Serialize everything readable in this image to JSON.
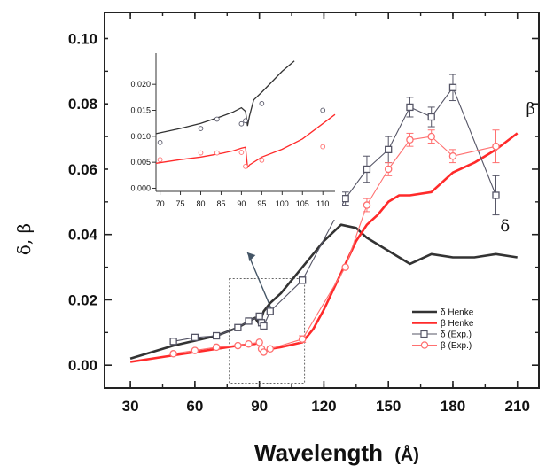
{
  "chart_data": [
    {
      "type": "line",
      "xlabel": "Wavelength",
      "xunit": "(Å)",
      "ylabel": "δ, β",
      "xlim": [
        18,
        220
      ],
      "ylim": [
        -0.007,
        0.108
      ],
      "xticks": [
        30,
        60,
        90,
        120,
        150,
        180,
        210
      ],
      "yticks": [
        0.0,
        0.02,
        0.04,
        0.06,
        0.08,
        0.1
      ],
      "ytick_labels": [
        "0.00",
        "0.02",
        "0.04",
        "0.06",
        "0.08",
        "0.10"
      ],
      "legend_position": "bottom-right",
      "annotations": [
        {
          "text": "β",
          "x": 214,
          "y": 0.077
        },
        {
          "text": "δ",
          "x": 202,
          "y": 0.041
        }
      ],
      "series": [
        {
          "name": "δ Henke",
          "color": "#333333",
          "style": "line",
          "x": [
            30,
            50,
            70,
            80,
            88,
            90,
            92,
            95,
            100,
            110,
            120,
            128,
            135,
            140,
            150,
            160,
            170,
            180,
            190,
            200,
            210
          ],
          "y": [
            0.002,
            0.006,
            0.009,
            0.0115,
            0.0145,
            0.0125,
            0.0165,
            0.019,
            0.022,
            0.03,
            0.038,
            0.043,
            0.042,
            0.039,
            0.035,
            0.031,
            0.034,
            0.033,
            0.033,
            0.034,
            0.033
          ]
        },
        {
          "name": "β Henke",
          "color": "#ff2a2a",
          "style": "line",
          "x": [
            30,
            50,
            70,
            80,
            88,
            90,
            92,
            95,
            100,
            110,
            115,
            120,
            125,
            130,
            135,
            140,
            145,
            150,
            155,
            160,
            170,
            180,
            190,
            200,
            210
          ],
          "y": [
            0.001,
            0.003,
            0.005,
            0.006,
            0.0065,
            0.007,
            0.004,
            0.005,
            0.0055,
            0.007,
            0.011,
            0.017,
            0.024,
            0.031,
            0.038,
            0.043,
            0.046,
            0.05,
            0.052,
            0.052,
            0.053,
            0.059,
            0.062,
            0.066,
            0.071
          ]
        },
        {
          "name": "δ (Exp.)",
          "color": "#555566",
          "style": "line-markers",
          "marker": "square",
          "x": [
            50,
            60,
            70,
            80,
            85,
            90,
            91,
            92,
            95,
            110,
            130,
            140,
            150,
            160,
            170,
            180,
            200
          ],
          "y": [
            0.0073,
            0.0085,
            0.009,
            0.0115,
            0.0135,
            0.015,
            0.013,
            0.012,
            0.0165,
            0.026,
            0.051,
            0.06,
            0.066,
            0.079,
            0.076,
            0.085,
            0.052
          ],
          "err": [
            0,
            0,
            0,
            0,
            0,
            0,
            0,
            0,
            0,
            0.001,
            0.002,
            0.004,
            0.004,
            0.003,
            0.003,
            0.004,
            0.006
          ]
        },
        {
          "name": "β (Exp.)",
          "color": "#ff7070",
          "style": "line-markers",
          "marker": "circle",
          "x": [
            50,
            60,
            70,
            80,
            85,
            90,
            91,
            92,
            95,
            110,
            130,
            140,
            150,
            160,
            170,
            180,
            200
          ],
          "y": [
            0.0035,
            0.0045,
            0.0055,
            0.006,
            0.0065,
            0.007,
            0.005,
            0.004,
            0.005,
            0.008,
            0.03,
            0.049,
            0.06,
            0.069,
            0.07,
            0.064,
            0.067
          ],
          "err": [
            0,
            0,
            0,
            0,
            0,
            0,
            0,
            0,
            0,
            0.001,
            0,
            0.002,
            0.002,
            0.002,
            0.002,
            0.002,
            0.005
          ]
        }
      ]
    },
    {
      "type": "line",
      "xlim": [
        69,
        113
      ],
      "ylim": [
        -0.0006,
        0.026
      ],
      "xticks": [
        70,
        75,
        80,
        85,
        90,
        95,
        100,
        105,
        110
      ],
      "yticks": [
        0.0,
        0.005,
        0.01,
        0.015,
        0.02
      ],
      "ytick_labels": [
        "0.000",
        "0.005",
        "0.010",
        "0.015",
        "0.020"
      ],
      "series": [
        {
          "color": "#333333",
          "style": "line",
          "x": [
            69,
            75,
            80,
            85,
            88,
            90,
            91,
            91.5,
            92,
            93,
            95,
            100,
            103
          ],
          "y": [
            0.0105,
            0.0115,
            0.0125,
            0.0138,
            0.0147,
            0.0155,
            0.0148,
            0.012,
            0.014,
            0.017,
            0.0185,
            0.0225,
            0.0245
          ]
        },
        {
          "color": "#ff2a2a",
          "style": "line",
          "x": [
            69,
            75,
            80,
            85,
            88,
            90,
            91,
            91.5,
            92,
            95,
            100,
            105,
            113
          ],
          "y": [
            0.0048,
            0.0055,
            0.006,
            0.0067,
            0.0072,
            0.0077,
            0.0079,
            0.004,
            0.0045,
            0.006,
            0.0075,
            0.0095,
            0.0142
          ]
        },
        {
          "color": "#555566",
          "style": "markers",
          "marker": "circle",
          "x": [
            70,
            80,
            84,
            90,
            91,
            95,
            110
          ],
          "y": [
            0.0088,
            0.0115,
            0.0133,
            0.0124,
            0.013,
            0.0163,
            0.015
          ]
        },
        {
          "color": "#ff7070",
          "style": "markers",
          "marker": "circle",
          "x": [
            70,
            80,
            84,
            90,
            91,
            95,
            110
          ],
          "y": [
            0.0055,
            0.0068,
            0.0068,
            0.0069,
            0.0042,
            0.0054,
            0.008
          ]
        }
      ]
    }
  ]
}
